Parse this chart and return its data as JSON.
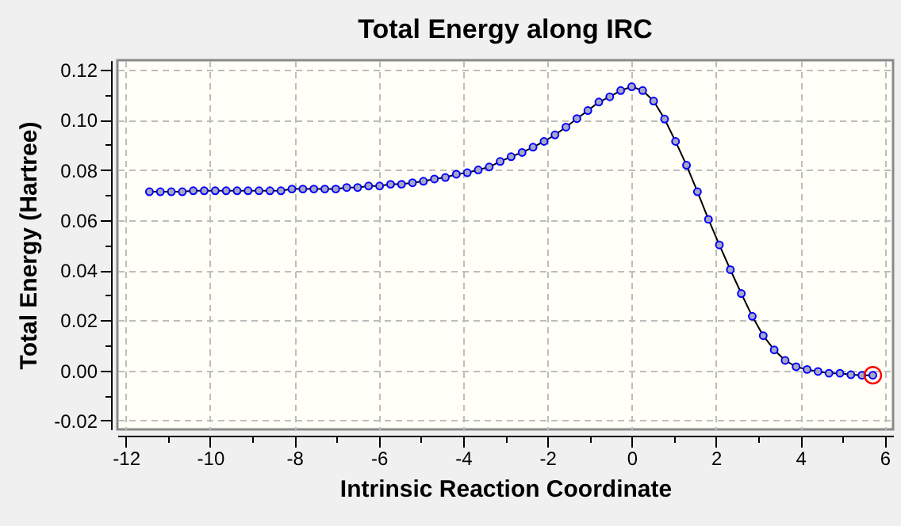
{
  "chart_data": {
    "type": "line",
    "title": "Total Energy along IRC",
    "xlabel": "Intrinsic Reaction Coordinate",
    "ylabel": "Total Energy (Hartree)",
    "xlim": [
      -12.2,
      6.2
    ],
    "ylim": [
      -0.0235,
      0.1238
    ],
    "xticks": [
      -12,
      {
        "value": -11,
        "label": null
      },
      -10,
      {
        "value": -9,
        "label": null
      },
      -8,
      {
        "value": -7,
        "label": null
      },
      -6,
      {
        "value": -5,
        "label": null
      },
      -4,
      {
        "value": -3,
        "label": null
      },
      -2,
      {
        "value": -1,
        "label": null
      },
      0,
      {
        "value": 1,
        "label": null
      },
      2,
      {
        "value": 3,
        "label": null
      },
      4,
      {
        "value": 5,
        "label": null
      },
      6
    ],
    "yticks": [
      -0.02,
      {
        "value": -0.01,
        "label": null
      },
      {
        "value": 0,
        "label": "0.00"
      },
      {
        "value": 0.01,
        "label": null
      },
      0.02,
      {
        "value": 0.03,
        "label": null
      },
      0.04,
      {
        "value": 0.05,
        "label": null
      },
      0.06,
      {
        "value": 0.07,
        "label": null
      },
      0.08,
      {
        "value": 0.09,
        "label": null
      },
      {
        "value": 0.1,
        "label": "0.10"
      },
      {
        "value": 0.11,
        "label": null
      },
      0.12
    ],
    "grid": true,
    "marker": "circle",
    "legend": false,
    "series": [
      {
        "type": "line",
        "color": "#0000ff",
        "x": [
          -11.44,
          -11.18,
          -10.92,
          -10.66,
          -10.4,
          -10.14,
          -9.88,
          -9.62,
          -9.36,
          -9.1,
          -8.84,
          -8.58,
          -8.32,
          -8.06,
          -7.8,
          -7.54,
          -7.28,
          -7.02,
          -6.76,
          -6.5,
          -6.24,
          -5.98,
          -5.72,
          -5.46,
          -5.2,
          -4.94,
          -4.68,
          -4.42,
          -4.16,
          -3.9,
          -3.64,
          -3.38,
          -3.12,
          -2.86,
          -2.6,
          -2.34,
          -2.08,
          -1.82,
          -1.56,
          -1.3,
          -1.04,
          -0.78,
          -0.52,
          -0.26,
          0,
          0.26,
          0.52,
          0.78,
          1.04,
          1.3,
          1.56,
          1.82,
          2.08,
          2.34,
          2.6,
          2.86,
          3.12,
          3.38,
          3.64,
          3.9,
          4.16,
          4.42,
          4.68,
          4.94,
          5.2,
          5.46,
          5.72
        ],
        "values": [
          0.0713,
          0.0713,
          0.0713,
          0.0713,
          0.0717,
          0.0717,
          0.0717,
          0.0717,
          0.0717,
          0.0717,
          0.0717,
          0.0717,
          0.0717,
          0.0724,
          0.0724,
          0.0724,
          0.0724,
          0.0724,
          0.073,
          0.073,
          0.0736,
          0.0736,
          0.0743,
          0.0743,
          0.0749,
          0.0755,
          0.0764,
          0.077,
          0.0783,
          0.0789,
          0.08,
          0.0812,
          0.0834,
          0.0853,
          0.087,
          0.0891,
          0.0914,
          0.094,
          0.0971,
          0.1005,
          0.1037,
          0.1071,
          0.1092,
          0.1117,
          0.1132,
          0.1117,
          0.1075,
          0.1003,
          0.0914,
          0.0819,
          0.0713,
          0.0603,
          0.0501,
          0.0402,
          0.0307,
          0.0216,
          0.0139,
          0.0082,
          0.004,
          0.0015,
          0.0004,
          -0.0004,
          -0.0011,
          -0.0011,
          -0.0017,
          -0.0019,
          -0.0019
        ]
      },
      {
        "type": "scatter",
        "color": "#ff0000",
        "x": [
          5.72
        ],
        "values": [
          -0.0019
        ]
      }
    ]
  }
}
